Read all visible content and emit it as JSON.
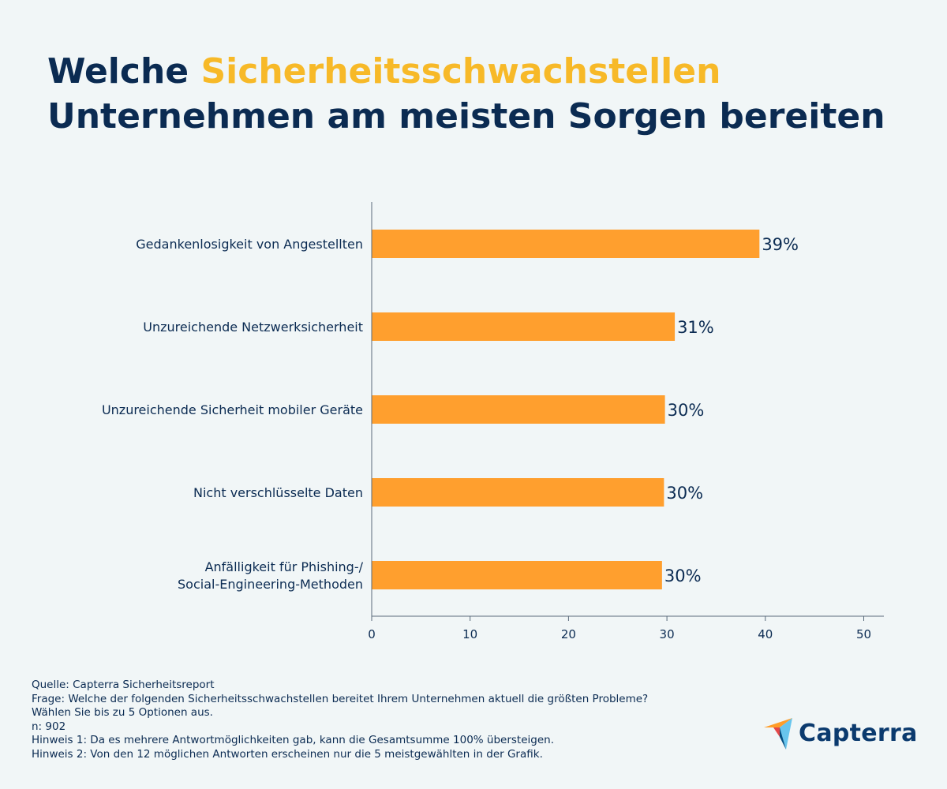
{
  "title": {
    "line1_prefix": "Welche ",
    "line1_highlight": "Sicherheitsschwachstellen",
    "line2": "Unternehmen am meisten Sorgen bereiten"
  },
  "colors": {
    "background": "#f1f6f7",
    "title": "#0b2b52",
    "highlight": "#f7b928",
    "bar": "#ff9f2e",
    "axis": "#5a6b7b"
  },
  "chart_data": {
    "type": "bar",
    "orientation": "horizontal",
    "categories": [
      [
        "Gedankenlosigkeit von Angestellten"
      ],
      [
        "Unzureichende Netzwerksicherheit"
      ],
      [
        "Unzureichende Sicherheit mobiler Geräte"
      ],
      [
        "Nicht verschlüsselte Daten"
      ],
      [
        "Anfälligkeit für Phishing-/",
        "Social-Engineering-Methoden"
      ]
    ],
    "values": [
      39.4,
      30.8,
      29.8,
      29.7,
      29.5
    ],
    "value_labels": [
      "39%",
      "31%",
      "30%",
      "30%",
      "30%"
    ],
    "xlim": [
      0,
      52
    ],
    "xticks": [
      0,
      10,
      20,
      30,
      40,
      50
    ],
    "grid": false
  },
  "footnotes": [
    "Quelle: Capterra Sicherheitsreport",
    "Frage: Welche der folgenden Sicherheitsschwachstellen bereitet Ihrem Unternehmen aktuell die größten Probleme?",
    "Wählen Sie bis zu 5 Optionen aus.",
    "n: 902",
    "Hinweis 1: Da es mehrere Antwortmöglichkeiten gab, kann die Gesamtsumme 100% übersteigen.",
    "Hinweis 2: Von den 12 möglichen Antworten erscheinen nur die 5 meistgewählten in der Grafik."
  ],
  "logo": {
    "text": "Capterra",
    "icon": "capterra-arrow-icon",
    "colors": [
      "#ff9d28",
      "#68c5ed",
      "#044d80",
      "#e54747"
    ]
  }
}
